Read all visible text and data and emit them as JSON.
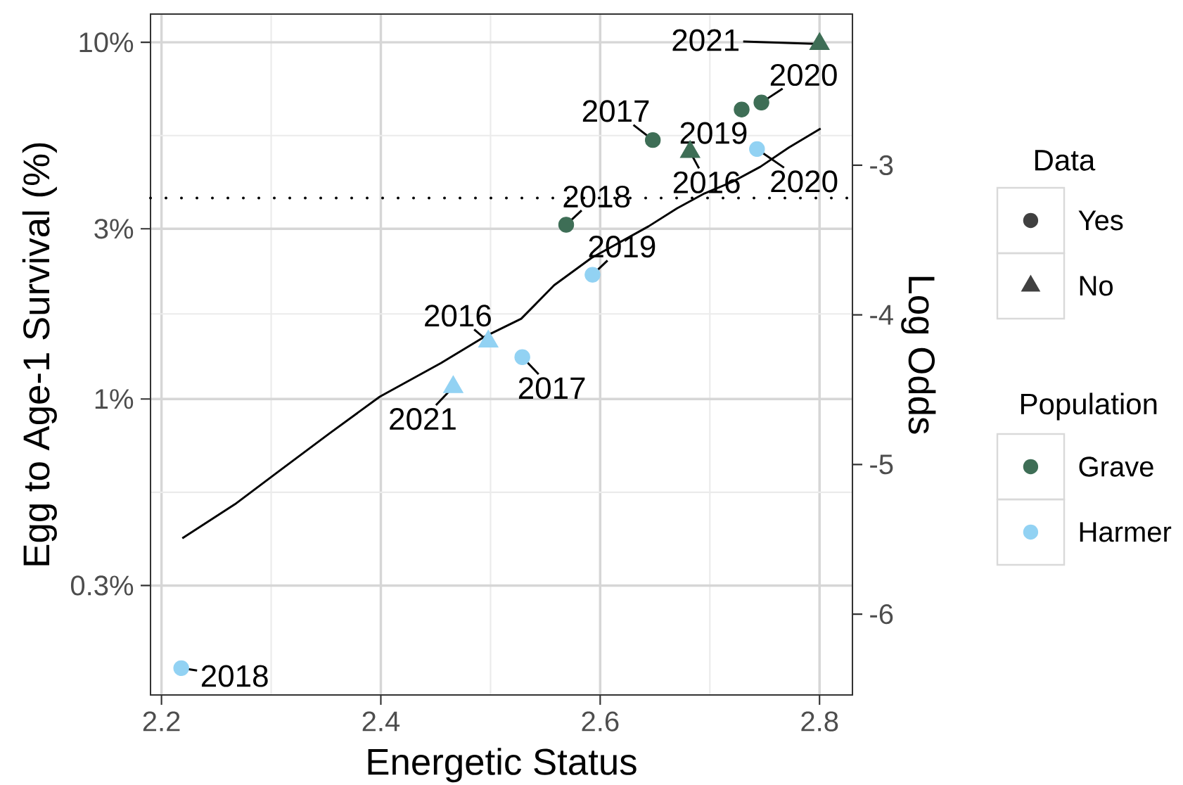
{
  "chart_data": {
    "type": "scatter",
    "xlabel": "Energetic Status",
    "ylabel": "Egg to Age-1 Survival (%)",
    "y2label": "Log Odds",
    "legend_title": "Population",
    "xlim": [
      2.19,
      2.83
    ],
    "xticks": [
      2.2,
      2.4,
      2.6,
      2.8
    ],
    "ylim": [
      0.148,
      12.0
    ],
    "yticks": [
      {
        "value": 10,
        "label": "10%"
      },
      {
        "value": 3,
        "label": "3%"
      },
      {
        "value": 1,
        "label": "1%"
      },
      {
        "value": 0.3,
        "label": "0.3%"
      }
    ],
    "log": "y",
    "y2lim": [
      -6.54,
      -1.99
    ],
    "y2ticks": [
      -3,
      -4,
      -5,
      -6
    ],
    "grid": true,
    "legend": "right",
    "series": [
      {
        "name": "Grave",
        "color": "#3e6e56",
        "marker": "circle",
        "x": [
          2.648,
          2.569,
          2.729,
          2.747
        ],
        "values": [
          5.32,
          3.08,
          6.48,
          6.78
        ]
      },
      {
        "name": "Harmer",
        "color": "#92d2f3",
        "marker": "circle",
        "x": [
          2.529,
          2.218,
          2.593,
          2.743
        ],
        "values": [
          1.31,
          0.176,
          2.23,
          5.02
        ]
      },
      {
        "color": "#3e6e56",
        "marker": "triangle",
        "x": [
          2.682,
          2.8
        ],
        "values": [
          4.93,
          9.89
        ]
      },
      {
        "color": "#92d2f3",
        "marker": "triangle",
        "x": [
          2.498,
          2.466
        ],
        "values": [
          1.45,
          1.08
        ]
      },
      {
        "type": "line",
        "color": "#000000",
        "line_style": "solid",
        "x": [
          2.219,
          2.267,
          2.306,
          2.353,
          2.399,
          2.455,
          2.494,
          2.528,
          2.558,
          2.592,
          2.644,
          2.67,
          2.695,
          2.721,
          2.746,
          2.772,
          2.801
        ],
        "values": [
          0.407,
          0.507,
          0.624,
          0.8,
          1.015,
          1.262,
          1.492,
          1.679,
          2.084,
          2.485,
          3.047,
          3.422,
          3.769,
          4.07,
          4.478,
          5.068,
          5.733
        ]
      }
    ],
    "ref_lines": [
      {
        "axis": "y",
        "value": 3.66,
        "line_style": "dotted",
        "color": "#000000"
      }
    ],
    "annotations": [
      "Data",
      "Yes",
      "No",
      {
        "text": "2016",
        "x": 2.682,
        "y": 4.93
      },
      {
        "text": "2017",
        "x": 2.648,
        "y": 5.32
      },
      {
        "text": "2018",
        "x": 2.569,
        "y": 3.08
      },
      {
        "text": "2019",
        "x": 2.729,
        "y": 6.48
      },
      {
        "text": "2020",
        "x": 2.747,
        "y": 6.78
      },
      {
        "text": "2021",
        "x": 2.8,
        "y": 9.89
      },
      {
        "text": "2016",
        "x": 2.498,
        "y": 1.45
      },
      {
        "text": "2017",
        "x": 2.529,
        "y": 1.31
      },
      {
        "text": "2018",
        "x": 2.218,
        "y": 0.176
      },
      {
        "text": "2019",
        "x": 2.593,
        "y": 2.23
      },
      {
        "text": "2020",
        "x": 2.743,
        "y": 5.02
      },
      {
        "text": "2021",
        "x": 2.466,
        "y": 1.08
      }
    ]
  }
}
